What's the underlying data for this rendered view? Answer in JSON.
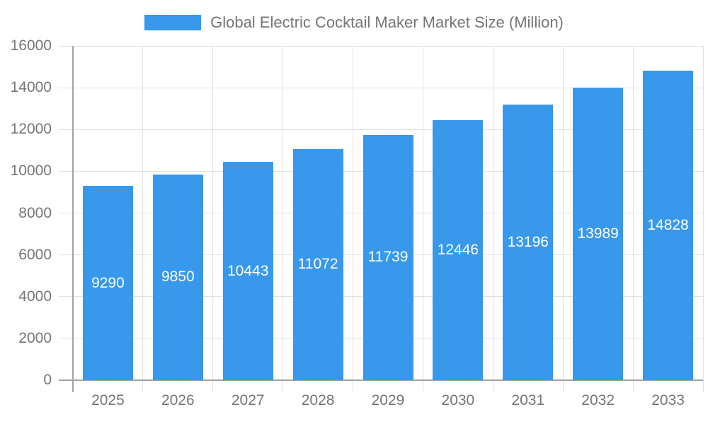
{
  "chart_data": {
    "type": "bar",
    "title": "Global Electric Cocktail Maker Market Size (Million)",
    "legend_position": "top",
    "categories": [
      "2025",
      "2026",
      "2027",
      "2028",
      "2029",
      "2030",
      "2031",
      "2032",
      "2033"
    ],
    "values": [
      9290,
      9850,
      10443,
      11072,
      11739,
      12446,
      13196,
      13989,
      14828
    ],
    "value_labels": [
      "9290",
      "9850",
      "10443",
      "11072",
      "11739",
      "12446",
      "13196",
      "13989",
      "14828"
    ],
    "xlabel": "",
    "ylabel": "",
    "ylim": [
      0,
      16000
    ],
    "ytick_step": 2000,
    "ytick_labels": [
      "0",
      "2000",
      "4000",
      "6000",
      "8000",
      "10000",
      "12000",
      "14000",
      "16000"
    ],
    "grid": true,
    "colors": {
      "bar": "#3898EC",
      "value_label": "#FFFFFF",
      "gridline": "#E1E1E1",
      "axis": "#A3A3A3",
      "tick_text": "#757575",
      "legend_text": "#757575",
      "background": "#FFFFFF"
    }
  }
}
